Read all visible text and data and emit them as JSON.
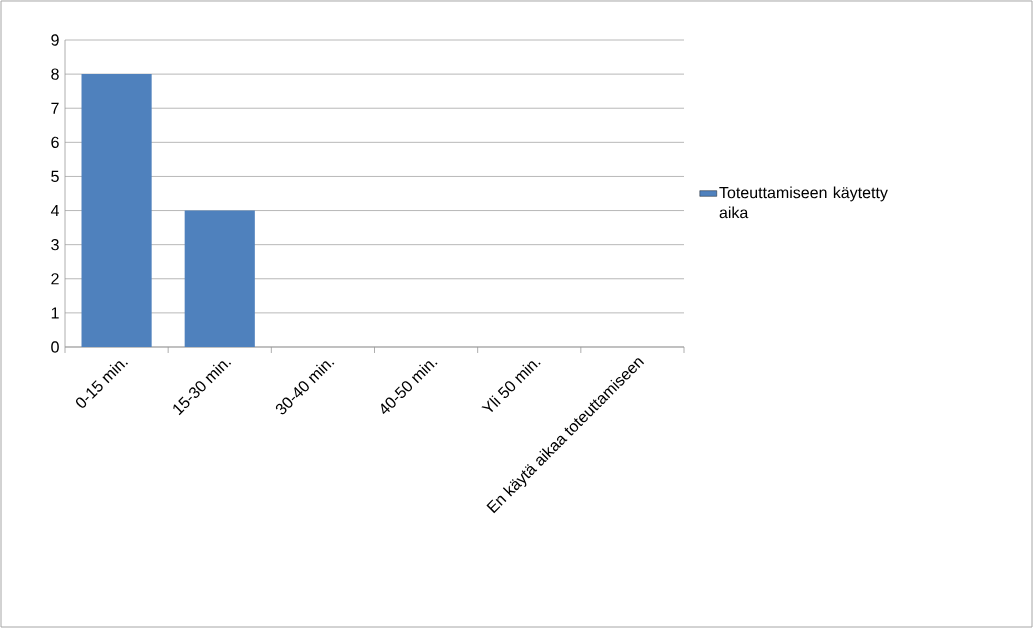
{
  "chart_data": {
    "type": "bar",
    "categories": [
      "0-15 min.",
      "15-30 min.",
      "30-40 min.",
      "40-50 min.",
      "Yli 50 min.",
      "En käytä aikaa toteuttamiseen"
    ],
    "series": [
      {
        "name": "Toteuttamiseen käytetty aika",
        "color": "#4f81bd",
        "values": [
          8,
          4,
          0,
          0,
          0,
          0
        ]
      }
    ],
    "ylim": [
      0,
      9
    ],
    "yticks": [
      0,
      1,
      2,
      3,
      4,
      5,
      6,
      7,
      8,
      9
    ],
    "grid": "y",
    "legend": "right"
  }
}
